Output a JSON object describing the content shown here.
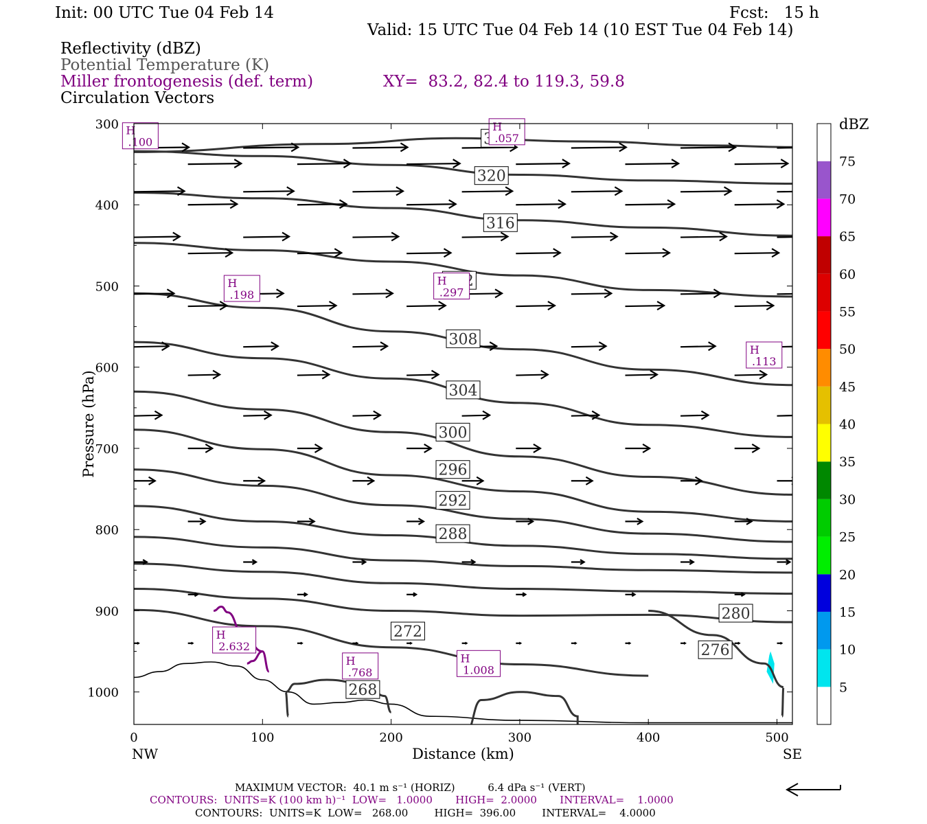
{
  "header": {
    "init": "Init: 00 UTC Tue 04 Feb 14",
    "fcst": "Fcst:   15 h",
    "valid": "Valid: 15 UTC Tue 04 Feb 14 (10 EST Tue 04 Feb 14)"
  },
  "legend": {
    "reflectivity": "Reflectivity (dBZ)",
    "theta": "Potential Temperature (K)",
    "miller": "Miller frontogenesis (def. term)",
    "xy": "XY=  83.2, 82.4 to 119.3, 59.8",
    "circulation": "Circulation Vectors"
  },
  "colors": {
    "theta_contour": "#333333",
    "miller_contour": "#800080",
    "vectors": "#000000",
    "reflectivity_echo": "#00e5ee"
  },
  "chart_data": {
    "type": "cross-section",
    "xlabel": "Distance (km)",
    "ylabel": "Pressure (hPa)",
    "xlim": [
      0,
      512
    ],
    "ylim": [
      1040,
      300
    ],
    "x_ticks": [
      0,
      100,
      200,
      300,
      400,
      500
    ],
    "y_ticks": [
      300,
      400,
      500,
      600,
      700,
      800,
      900,
      1000
    ],
    "x_end_labels": {
      "left": "NW",
      "right": "SE"
    },
    "theta_contours": [
      {
        "label": "324",
        "points": [
          [
            0,
            335
          ],
          [
            150,
            325
          ],
          [
            250,
            318
          ],
          [
            350,
            322
          ],
          [
            450,
            327
          ],
          [
            512,
            329
          ]
        ],
        "label_at": [
          283,
          318
        ]
      },
      {
        "label": "320",
        "points": [
          [
            0,
            334
          ],
          [
            100,
            340
          ],
          [
            200,
            351
          ],
          [
            300,
            363
          ],
          [
            400,
            370
          ],
          [
            512,
            374
          ]
        ],
        "label_at": [
          278,
          364
        ]
      },
      {
        "label": "316",
        "points": [
          [
            0,
            385
          ],
          [
            100,
            392
          ],
          [
            200,
            404
          ],
          [
            300,
            419
          ],
          [
            400,
            428
          ],
          [
            512,
            438
          ]
        ],
        "label_at": [
          285,
          422
        ]
      },
      {
        "label": "312",
        "points": [
          [
            0,
            447
          ],
          [
            100,
            456
          ],
          [
            200,
            470
          ],
          [
            300,
            487
          ],
          [
            400,
            505
          ],
          [
            512,
            513
          ]
        ],
        "label_at": [
          253,
          493
        ]
      },
      {
        "label": "308",
        "points": [
          [
            0,
            509
          ],
          [
            100,
            527
          ],
          [
            200,
            556
          ],
          [
            300,
            578
          ],
          [
            400,
            603
          ],
          [
            512,
            622
          ]
        ],
        "label_at": [
          256,
          565
        ]
      },
      {
        "label": "304",
        "points": [
          [
            0,
            569
          ],
          [
            100,
            589
          ],
          [
            200,
            614
          ],
          [
            300,
            644
          ],
          [
            400,
            671
          ],
          [
            512,
            686
          ]
        ],
        "label_at": [
          256,
          628
        ]
      },
      {
        "label": "300",
        "points": [
          [
            0,
            630
          ],
          [
            100,
            652
          ],
          [
            200,
            680
          ],
          [
            300,
            710
          ],
          [
            400,
            735
          ],
          [
            512,
            757
          ]
        ],
        "label_at": [
          248,
          680
        ]
      },
      {
        "label": "296",
        "points": [
          [
            0,
            677
          ],
          [
            100,
            701
          ],
          [
            200,
            733
          ],
          [
            300,
            753
          ],
          [
            400,
            778
          ],
          [
            512,
            790
          ]
        ],
        "label_at": [
          248,
          726
        ]
      },
      {
        "label": "292",
        "points": [
          [
            0,
            726
          ],
          [
            100,
            746
          ],
          [
            200,
            770
          ],
          [
            300,
            787
          ],
          [
            400,
            805
          ],
          [
            512,
            815
          ]
        ],
        "label_at": [
          248,
          764
        ]
      },
      {
        "label": "288",
        "points": [
          [
            0,
            771
          ],
          [
            100,
            790
          ],
          [
            200,
            807
          ],
          [
            300,
            820
          ],
          [
            400,
            830
          ],
          [
            512,
            836
          ]
        ],
        "label_at": [
          248,
          805
        ]
      },
      {
        "label": "",
        "points": [
          [
            0,
            809
          ],
          [
            100,
            822
          ],
          [
            200,
            838
          ],
          [
            300,
            845
          ],
          [
            400,
            850
          ],
          [
            512,
            853
          ]
        ],
        "label_at": null
      },
      {
        "label": "",
        "points": [
          [
            0,
            842
          ],
          [
            100,
            852
          ],
          [
            200,
            866
          ],
          [
            300,
            873
          ],
          [
            400,
            876
          ],
          [
            512,
            879
          ]
        ],
        "label_at": null
      },
      {
        "label": "280",
        "points": [
          [
            0,
            873
          ],
          [
            100,
            885
          ],
          [
            200,
            900
          ],
          [
            300,
            906
          ],
          [
            400,
            905
          ],
          [
            512,
            914
          ]
        ],
        "label_at": [
          468,
          903
        ]
      },
      {
        "label": "272",
        "points": [
          [
            0,
            899
          ],
          [
            100,
            919
          ],
          [
            200,
            945
          ],
          [
            300,
            966
          ],
          [
            400,
            980
          ]
        ],
        "label_at": [
          213,
          925
        ]
      },
      {
        "label": "276",
        "points": [
          [
            400,
            900
          ],
          [
            450,
            930
          ],
          [
            490,
            965
          ],
          [
            505,
            994
          ],
          [
            504,
            1030
          ]
        ],
        "label_at": [
          452,
          948
        ]
      }
    ],
    "extra_labels": [
      {
        "label": "268",
        "at": [
          178,
          997
        ]
      }
    ],
    "cold_pools": [
      {
        "points": [
          [
            120,
            1030
          ],
          [
            118,
            1000
          ],
          [
            125,
            990
          ],
          [
            150,
            985
          ],
          [
            180,
            990
          ],
          [
            195,
            1005
          ],
          [
            200,
            1025
          ]
        ]
      },
      {
        "points": [
          [
            258,
            1050
          ],
          [
            270,
            1010
          ],
          [
            300,
            1000
          ],
          [
            330,
            1005
          ],
          [
            345,
            1030
          ],
          [
            345,
            1060
          ]
        ]
      }
    ],
    "miller_maxima": [
      {
        "label": "H",
        "value": ".100",
        "at": [
          5,
          315
        ]
      },
      {
        "label": "H",
        "value": ".057",
        "at": [
          290,
          310
        ]
      },
      {
        "label": "H",
        "value": ".198",
        "at": [
          84,
          503
        ]
      },
      {
        "label": "H",
        "value": ".297",
        "at": [
          247,
          500
        ]
      },
      {
        "label": "H",
        "value": ".113",
        "at": [
          490,
          585
        ]
      },
      {
        "label": "H",
        "value": "2.632",
        "at": [
          78,
          936
        ]
      },
      {
        "label": "H",
        "value": ".768",
        "at": [
          176,
          968
        ]
      },
      {
        "label": "H",
        "value": "1.008",
        "at": [
          268,
          965
        ]
      }
    ],
    "terrain_hpa": [
      [
        0,
        982
      ],
      [
        20,
        975
      ],
      [
        40,
        965
      ],
      [
        60,
        963
      ],
      [
        80,
        968
      ],
      [
        100,
        985
      ],
      [
        120,
        1000
      ],
      [
        140,
        1015
      ],
      [
        160,
        1013
      ],
      [
        180,
        1010
      ],
      [
        200,
        1015
      ],
      [
        230,
        1030
      ],
      [
        300,
        1035
      ],
      [
        400,
        1038
      ],
      [
        512,
        1038
      ]
    ],
    "reflectivity": {
      "unit": "dBZ",
      "levels": [
        5,
        10,
        15,
        20,
        25,
        30,
        35,
        40,
        45,
        50,
        55,
        60,
        65,
        70,
        75
      ],
      "colors": [
        "#ffffff",
        "#00e5ee",
        "#0099ee",
        "#0000dd",
        "#00ee00",
        "#00cc00",
        "#008800",
        "#ffff00",
        "#e5c000",
        "#ff8c00",
        "#ff0000",
        "#dd0000",
        "#c00000",
        "#ff00ff",
        "#9955cc",
        "#ffffff"
      ],
      "echo_points": [
        [
          495,
          950
        ],
        [
          498,
          965
        ],
        [
          497,
          990
        ],
        [
          492,
          975
        ],
        [
          494,
          955
        ]
      ]
    },
    "vectors": {
      "levels_hpa": [
        330,
        350,
        384,
        400,
        440,
        460,
        510,
        525,
        575,
        610,
        660,
        700,
        740,
        790,
        840,
        880,
        940
      ],
      "x_positions_km": [
        0,
        42,
        85,
        127,
        170,
        212,
        255,
        297,
        340,
        382,
        425,
        467,
        500
      ]
    }
  },
  "footer": {
    "max_vector": "MAXIMUM VECTOR:  40.1 m s⁻¹ (HORIZ)          6.4 dPa s⁻¹ (VERT)",
    "contours_miller": "CONTOURS:  UNITS=K (100 km h)⁻¹  LOW=   1.0000       HIGH=  2.0000       INTERVAL=    1.0000",
    "contours_theta": "CONTOURS:  UNITS=K  LOW=   268.00        HIGH=  396.00        INTERVAL=    4.0000"
  }
}
